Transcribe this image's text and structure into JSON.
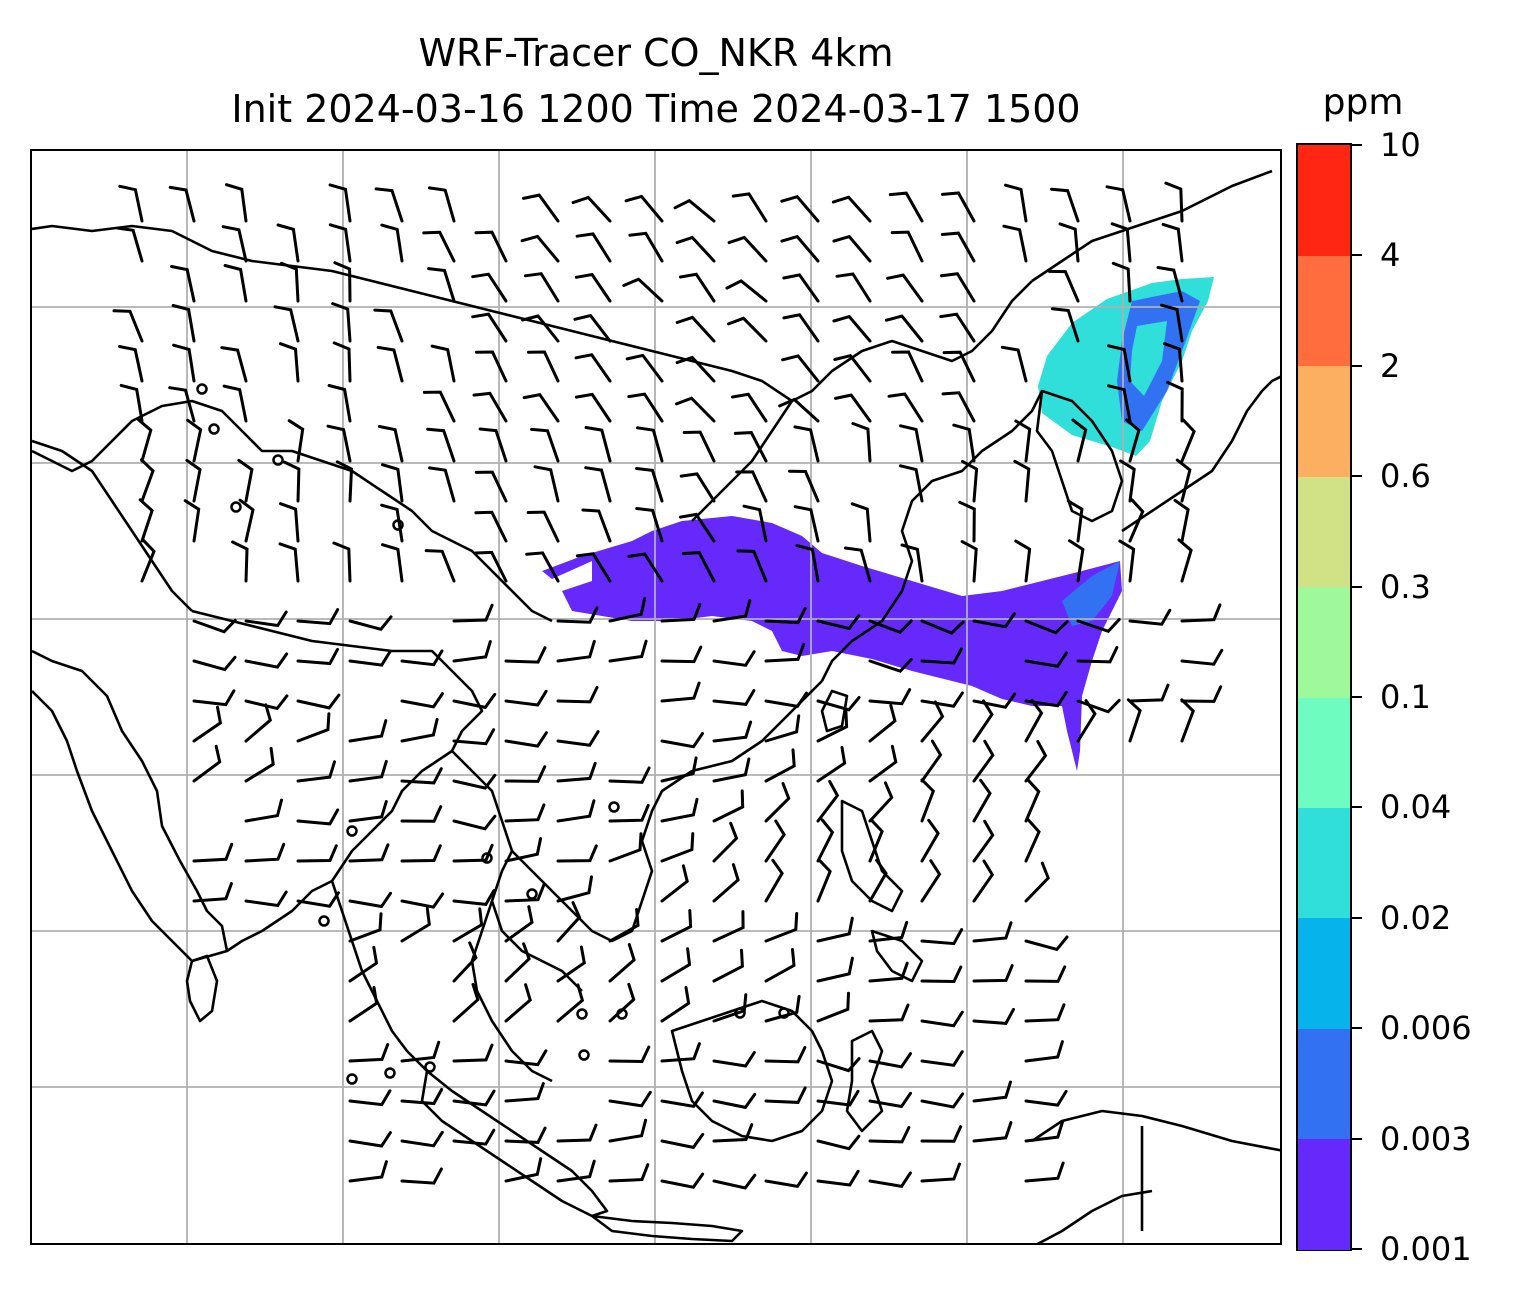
{
  "title": {
    "line1": "WRF-Tracer CO_NKR 4km",
    "line2": "Init 2024-03-16 1200 Time 2024-03-17 1500"
  },
  "colorbar": {
    "unit": "ppm",
    "levels": [
      "0.001",
      "0.003",
      "0.006",
      "0.02",
      "0.04",
      "0.1",
      "0.3",
      "0.6",
      "2",
      "4",
      "10"
    ],
    "colors": [
      "#6529fb",
      "#3371f3",
      "#07b3eb",
      "#30dfd9",
      "#6ffcc0",
      "#9ff99b",
      "#d1e185",
      "#fcae61",
      "#ff6c3d",
      "#ff2614"
    ]
  },
  "map": {
    "gridlines": true,
    "plumes": [
      {
        "name": "northeast-china-plume",
        "level": "0.02–0.04",
        "color": "#30dfd9"
      },
      {
        "name": "east-china-plume",
        "level": "0.001–0.003",
        "color": "#6529fb"
      }
    ],
    "calm_symbol": "circle",
    "features": [
      "coastlines",
      "country-borders",
      "wind-barbs"
    ]
  }
}
